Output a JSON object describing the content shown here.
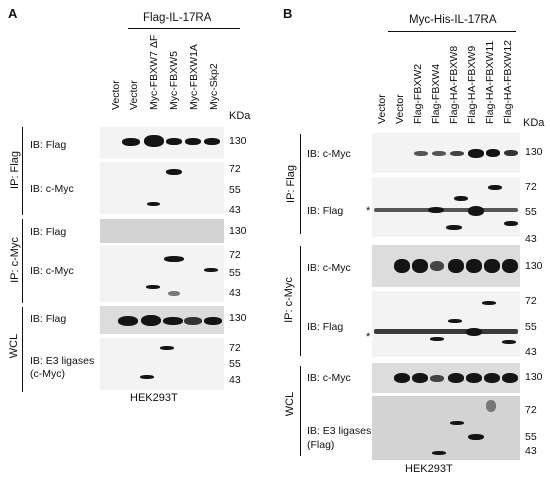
{
  "panels": {
    "a": {
      "letter": "A",
      "construct": "Flag-IL-17RA",
      "lanes": [
        "Vector",
        "Vector",
        "Myc-FBXW7 ΔF",
        "Myc-FBXW5",
        "Myc-FBXW1A",
        "Myc-Skp2"
      ],
      "kda": "KDa",
      "groups": [
        "IP: Flag",
        "IP: c-Myc",
        "WCL"
      ],
      "blots": [
        {
          "ib": "IB: Flag",
          "markers": [
            "130"
          ]
        },
        {
          "ib": "IB: c-Myc",
          "markers": [
            "72",
            "55",
            "43"
          ]
        },
        {
          "ib": "IB: Flag",
          "markers": [
            "130"
          ]
        },
        {
          "ib": "IB: c-Myc",
          "markers": [
            "72",
            "55",
            "43"
          ]
        },
        {
          "ib": "IB: Flag",
          "markers": [
            "130"
          ]
        },
        {
          "ib": "IB: E3 ligases",
          "ib2": "(c-Myc)",
          "markers": [
            "72",
            "55",
            "43"
          ]
        }
      ],
      "cell_line": "HEK293T"
    },
    "b": {
      "letter": "B",
      "construct": "Myc-His-IL-17RA",
      "lanes": [
        "Vector",
        "Vector",
        "Flag-FBXW2",
        "Flag-FBXW4",
        "Flag-HA-FBXW8",
        "Flag-HA-FBXW9",
        "Flag-HA-FBXW11",
        "Flag-HA-FBXW12"
      ],
      "kda": "KDa",
      "groups": [
        "IP: Flag",
        "IP: c-Myc",
        "WCL"
      ],
      "blots": [
        {
          "ib": "IB: c-Myc",
          "markers": [
            "130"
          ]
        },
        {
          "ib": "IB: Flag",
          "markers": [
            "72",
            "55",
            "43"
          ],
          "star": "*"
        },
        {
          "ib": "IB: c-Myc",
          "markers": [
            "130"
          ]
        },
        {
          "ib": "IB: Flag",
          "markers": [
            "72",
            "55",
            "43"
          ],
          "star": "*"
        },
        {
          "ib": "IB: c-Myc",
          "markers": [
            "130"
          ]
        },
        {
          "ib": "IB: E3 ligases",
          "ib2": "(Flag)",
          "markers": [
            "72",
            "55",
            "43"
          ]
        }
      ],
      "cell_line": "HEK293T"
    }
  }
}
